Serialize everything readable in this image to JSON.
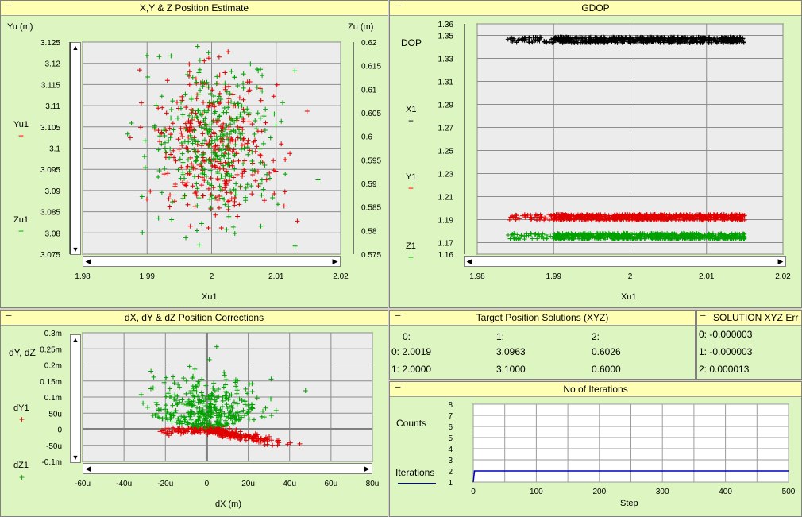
{
  "panels": {
    "xyz": {
      "title": "X,Y & Z Position Estimate",
      "left_axis_title": "Yu (m)",
      "right_axis_title": "Zu (m)",
      "x_axis_title": "Xu1",
      "legend": [
        {
          "name": "Yu1",
          "color": "#e00000"
        },
        {
          "name": "Zu1",
          "color": "#00a000"
        }
      ]
    },
    "gdop": {
      "title": "GDOP",
      "y_axis_title": "DOP",
      "x_axis_title": "Xu1",
      "legend": [
        {
          "name": "X1",
          "color": "#000000"
        },
        {
          "name": "Y1",
          "color": "#e00000"
        },
        {
          "name": "Z1",
          "color": "#00a000"
        }
      ]
    },
    "corr": {
      "title": "dX, dY & dZ Position Corrections",
      "y_axis_title": "dY, dZ",
      "x_axis_title": "dX (m)",
      "legend": [
        {
          "name": "dY1",
          "color": "#e00000"
        },
        {
          "name": "dZ1",
          "color": "#00a000"
        }
      ]
    },
    "target": {
      "title": "Target Position Solutions (XYZ)",
      "headers": [
        "0:",
        "1:",
        "2:"
      ],
      "rows": [
        [
          "0: 2.0019",
          "3.0963",
          "0.6026"
        ],
        [
          "1: 2.0000",
          "3.1000",
          "0.6000"
        ]
      ]
    },
    "err": {
      "title": "SOLUTION XYZ Err",
      "rows": [
        "0: -0.000003",
        "1: -0.000003",
        "2: 0.000013"
      ]
    },
    "iter": {
      "title": "No of Iterations",
      "y_axis_title": "Counts",
      "x_axis_title": "Step",
      "legend": [
        {
          "name": "Iterations",
          "color": "#0000c0"
        }
      ]
    }
  },
  "chart_data": [
    {
      "type": "scatter",
      "title": "X,Y & Z Position Estimate",
      "xlabel": "Xu1",
      "ylabel": "Yu (m)",
      "y2label": "Zu (m)",
      "xlim": [
        1.98,
        2.02
      ],
      "ylim": [
        3.075,
        3.125
      ],
      "y2lim": [
        0.575,
        0.62
      ],
      "x_ticks": [
        "1.98",
        "1.99",
        "2",
        "2.01",
        "2.02"
      ],
      "y_ticks": [
        "3.125",
        "3.12",
        "3.115",
        "3.11",
        "3.105",
        "3.1",
        "3.095",
        "3.09",
        "3.085",
        "3.08",
        "3.075"
      ],
      "y2_ticks": [
        "0.62",
        "0.615",
        "0.61",
        "0.605",
        "0.6",
        "0.595",
        "0.59",
        "0.585",
        "0.58",
        "0.575"
      ],
      "grid": true,
      "series": [
        {
          "name": "Yu1",
          "color": "#e00000",
          "axis": "left",
          "distribution": {
            "x_mean": 2.0005,
            "x_sd": 0.005,
            "y_mean": 3.1,
            "y_sd": 0.009,
            "count": 330
          }
        },
        {
          "name": "Zu1",
          "color": "#00a000",
          "axis": "right",
          "distribution": {
            "x_mean": 2.0005,
            "x_sd": 0.005,
            "y_mean": 0.6,
            "y_sd": 0.008,
            "count": 330
          }
        }
      ]
    },
    {
      "type": "scatter",
      "title": "GDOP",
      "xlabel": "Xu1",
      "ylabel": "DOP",
      "xlim": [
        1.98,
        2.02
      ],
      "ylim": [
        1.16,
        1.36
      ],
      "x_ticks": [
        "1.98",
        "1.99",
        "2",
        "2.01",
        "2.02"
      ],
      "y_ticks": [
        "1.36",
        "1.35",
        "1.33",
        "1.31",
        "1.29",
        "1.27",
        "1.25",
        "1.23",
        "1.21",
        "1.19",
        "1.17",
        "1.16"
      ],
      "grid": true,
      "series": [
        {
          "name": "X1",
          "color": "#000000",
          "band": {
            "x_min": 1.984,
            "x_max": 2.015,
            "y_center": 1.346,
            "y_spread": 0.0025,
            "count": 700
          }
        },
        {
          "name": "Y1",
          "color": "#e00000",
          "band": {
            "x_min": 1.984,
            "x_max": 2.015,
            "y_center": 1.192,
            "y_spread": 0.0025,
            "count": 700
          }
        },
        {
          "name": "Z1",
          "color": "#00a000",
          "band": {
            "x_min": 1.984,
            "x_max": 2.015,
            "y_center": 1.1755,
            "y_spread": 0.0025,
            "count": 700
          }
        }
      ]
    },
    {
      "type": "scatter",
      "title": "dX, dY & dZ Position Corrections",
      "xlabel": "dX (m)",
      "ylabel": "dY, dZ",
      "xlim": [
        -60,
        80
      ],
      "ylim": [
        -0.1,
        0.3
      ],
      "x_ticks": [
        "-60u",
        "-40u",
        "-20u",
        "0",
        "20u",
        "40u",
        "60u",
        "80u"
      ],
      "y_ticks": [
        "0.3m",
        "0.25m",
        "0.2m",
        "0.15m",
        "0.1m",
        "50u",
        "0",
        "-50u",
        "-0.1m"
      ],
      "grid": true,
      "series": [
        {
          "name": "dY1",
          "color": "#e00000",
          "pattern": "fan-down-right",
          "count": 360
        },
        {
          "name": "dZ1",
          "color": "#00a000",
          "pattern": "fan-up",
          "count": 360
        }
      ]
    },
    {
      "type": "line",
      "title": "No of Iterations",
      "xlabel": "Step",
      "ylabel": "Counts",
      "xlim": [
        0,
        500
      ],
      "ylim": [
        1,
        8
      ],
      "x_ticks": [
        "0",
        "100",
        "200",
        "300",
        "400",
        "500"
      ],
      "y_ticks": [
        "8",
        "7",
        "6",
        "5",
        "4",
        "3",
        "2",
        "1"
      ],
      "grid": true,
      "series": [
        {
          "name": "Iterations",
          "color": "#0000c0",
          "x": [
            0,
            2,
            500
          ],
          "y": [
            1,
            2,
            2
          ]
        }
      ]
    }
  ]
}
